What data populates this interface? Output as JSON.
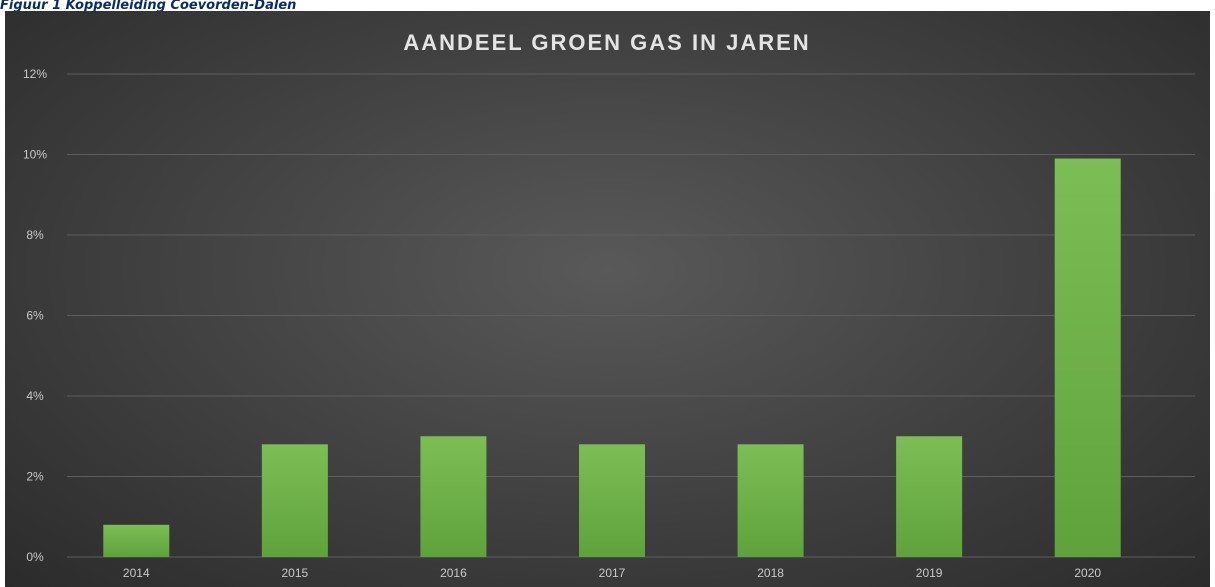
{
  "caption": "Figuur 1 Koppelleiding Coevorden-Dalen",
  "chart_data": {
    "type": "bar",
    "title": "AANDEEL GROEN GAS IN JAREN",
    "xlabel": "",
    "ylabel": "",
    "categories": [
      "2014",
      "2015",
      "2016",
      "2017",
      "2018",
      "2019",
      "2020"
    ],
    "values": [
      0.8,
      2.8,
      3.0,
      2.8,
      2.8,
      3.0,
      9.9
    ],
    "value_unit": "%",
    "ylim": [
      0,
      12
    ],
    "yticks": [
      0,
      2,
      4,
      6,
      8,
      10,
      12
    ],
    "ytick_labels": [
      "0%",
      "2%",
      "4%",
      "6%",
      "8%",
      "10%",
      "12%"
    ],
    "grid": true,
    "legend": "none",
    "colors": {
      "bar": "#6aae45",
      "bar_light": "#7dbd55",
      "gridline": "#5e5e5e",
      "background": "#444444",
      "text": "#c9c9c9"
    }
  }
}
